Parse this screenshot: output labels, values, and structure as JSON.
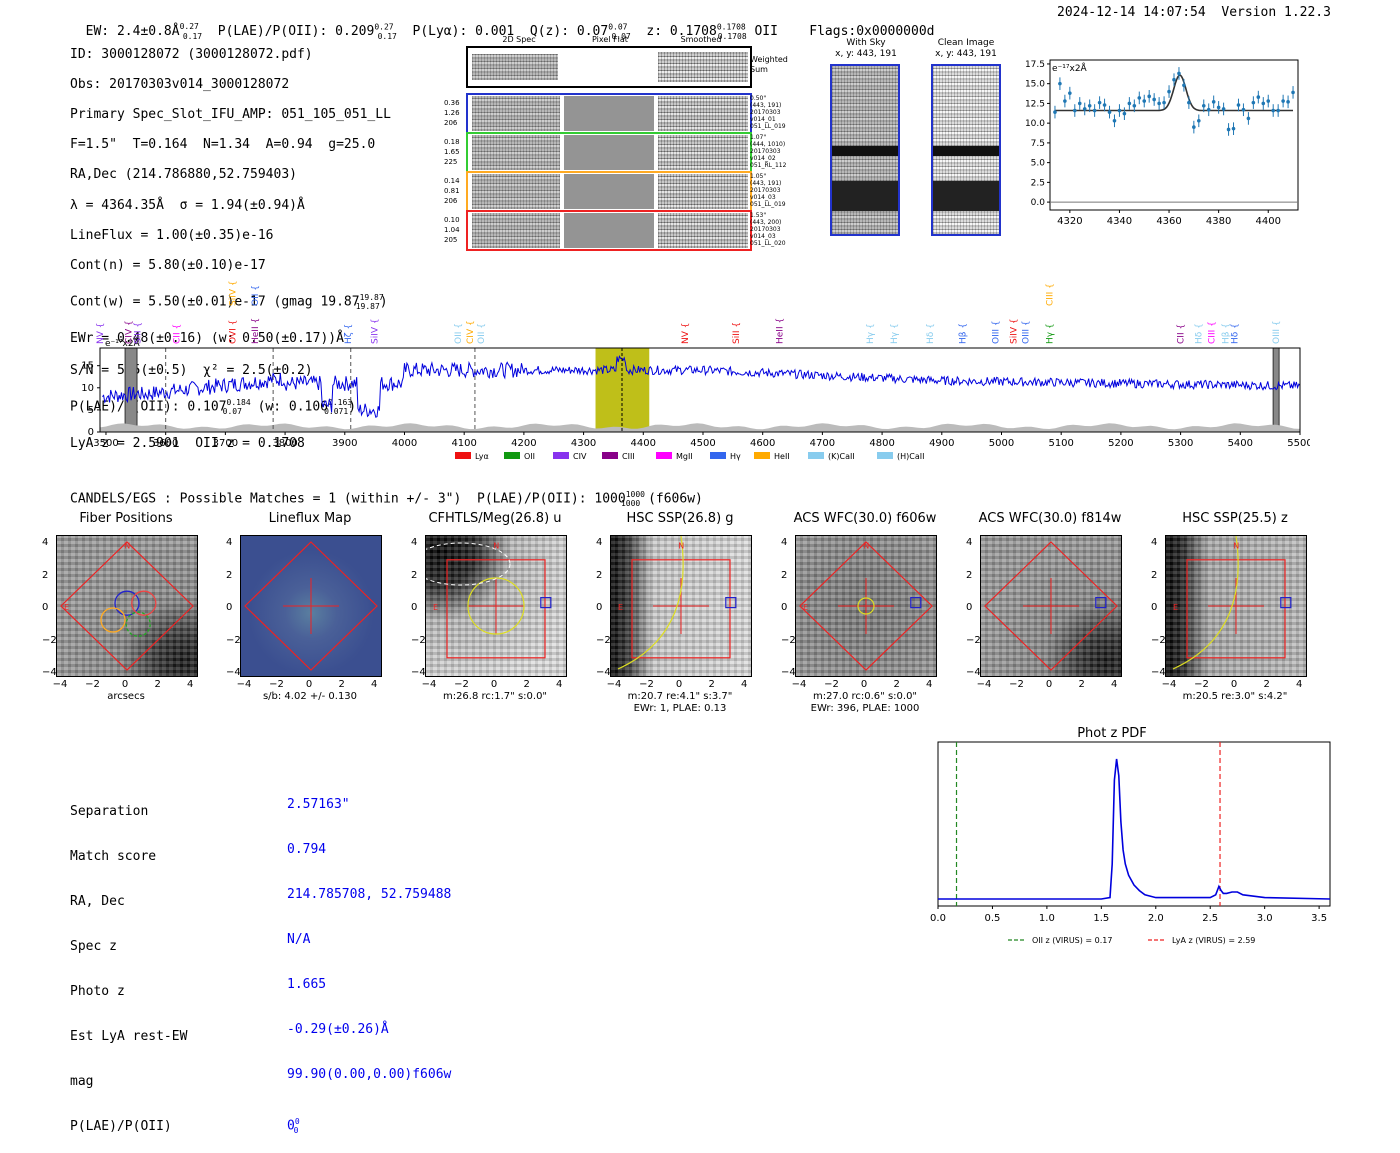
{
  "header": {
    "ew": "EW: 2.4±0.8Å",
    "ew_sup": "0.27",
    "ew_sub": "0.17",
    "plae_label": "P(LAE)/P(OII): 0.209",
    "plya": "P(Lyα): 0.001",
    "qz_label": "Q(z): 0.07",
    "qz_sup": "0.07",
    "qz_sub": "0.07",
    "z_label": "z: 0.1708",
    "z_sup": "0.1708",
    "z_sub": "0.1708",
    "z_tag": "OII",
    "flags": "Flags:0x0000000d",
    "timestamp": "2024-12-14 14:07:54",
    "version": "Version 1.22.3"
  },
  "info": {
    "lines": [
      "ID: 3000128072 (3000128072.pdf)",
      "Obs: 20170303v014_3000128072",
      "Primary Spec_Slot_IFU_AMP: 051_105_051_LL",
      "F=1.5\"  T=0.164  N=1.34  A=0.94  g=25.0",
      "RA,Dec (214.786880,52.759403)",
      "λ = 4364.35Å  σ = 1.94(±0.94)Å",
      "LineFlux = 1.00(±0.35)e-16",
      "Cont(n) = 5.80(±0.10)e-17",
      "Cont(w) = 5.50(±0.01)e-17 (gmag 19.87",
      "EWr = 0.48(±0.16) (w: 0.50(±0.17))Å",
      "S/N = 5.5(±0.5)  χ² = 2.5(±0.2)",
      "P(LAE)/P(OII): 0.107",
      "LyA z = 2.5901  OII z = 0.1708"
    ],
    "gmag_sup": "19.87",
    "gmag_sub": "19.87",
    "plae_sup": "0.184",
    "plae_sub": "0.07",
    "plae_w": "(w: 0.106",
    "plae_w_sup": "0.163",
    "plae_w_sub": "0.071"
  },
  "cutouts": {
    "col_headers": [
      "2D Spec",
      "Pixel Flat",
      "Smoothed"
    ],
    "weighted_sum": "Weighted Sum",
    "rows": [
      {
        "nums": "0.36\n1.26\n206",
        "meta": "0.50\"\n(443, 191)\n20170303\nv014_01\n051_LL_019",
        "color": "#2233cc"
      },
      {
        "nums": "0.18\n1.65\n225",
        "meta": "1.07\"\n(444, 1010)\n20170303\nv014_02\n051_RL_112",
        "color": "#33cc33"
      },
      {
        "nums": "0.14\n0.81\n206",
        "meta": "1.05\"\n(443, 191)\n20170303\nv014_03\n051_LL_019",
        "color": "#ffaa22"
      },
      {
        "nums": "0.10\n1.04\n205",
        "meta": "1.53\"\n(443, 200)\n20170303\nv014_03\n051_LL_020",
        "color": "#ee2222"
      }
    ],
    "with_sky": "With Sky",
    "with_sky_xy": "x, y: 443, 191",
    "clean_image": "Clean Image",
    "clean_xy": "x, y: 443, 191"
  },
  "colors": {
    "blue": "#0000ee",
    "red": "#ee2222",
    "green": "#228822",
    "orange": "#ffaa22",
    "yellow": "#b8b800",
    "steel": "#1f77b4"
  },
  "chart_data": [
    {
      "type": "scatter",
      "name": "line-fit",
      "ylabel": "e⁻¹⁷x2Å",
      "xlim": [
        4312,
        4412
      ],
      "ylim": [
        -1,
        18
      ],
      "xticks": [
        4320,
        4340,
        4360,
        4380,
        4400
      ],
      "yticks": [
        0.0,
        2.5,
        5.0,
        7.5,
        10.0,
        12.5,
        15.0,
        17.5
      ],
      "x": [
        4314,
        4316,
        4318,
        4320,
        4322,
        4324,
        4326,
        4328,
        4330,
        4332,
        4334,
        4336,
        4338,
        4340,
        4342,
        4344,
        4346,
        4348,
        4350,
        4352,
        4354,
        4356,
        4358,
        4360,
        4362,
        4364,
        4366,
        4368,
        4370,
        4372,
        4374,
        4376,
        4378,
        4380,
        4382,
        4384,
        4386,
        4388,
        4390,
        4392,
        4394,
        4396,
        4398,
        4400,
        4402,
        4404,
        4406,
        4408,
        4410
      ],
      "y": [
        11.4,
        15.0,
        12.8,
        13.8,
        11.6,
        12.5,
        11.8,
        12.2,
        11.6,
        12.6,
        12.3,
        11.4,
        10.3,
        11.6,
        11.2,
        12.5,
        12.2,
        13.2,
        12.8,
        13.4,
        13.0,
        12.5,
        12.6,
        14.0,
        15.5,
        16.3,
        14.8,
        12.6,
        9.5,
        10.3,
        12.2,
        11.7,
        12.7,
        12.0,
        11.8,
        9.2,
        9.3,
        12.3,
        11.7,
        10.6,
        12.6,
        13.3,
        12.5,
        12.8,
        11.6,
        11.6,
        12.8,
        12.7,
        13.9
      ],
      "fit_baseline": 11.6,
      "fit_peak": 16.1,
      "fit_center": 4364.35,
      "fit_sigma": 1.94
    },
    {
      "type": "line",
      "name": "full-spectrum",
      "ylabel": "e⁻¹⁷x2Å",
      "xlim": [
        3490,
        5500
      ],
      "ylim": [
        0,
        19
      ],
      "xticks": [
        3500,
        3600,
        3700,
        3800,
        3900,
        4000,
        4100,
        4200,
        4300,
        4400,
        4500,
        4600,
        4700,
        4800,
        4900,
        5000,
        5100,
        5200,
        5300,
        5400,
        5500
      ],
      "yticks": [
        0,
        5,
        10,
        15
      ],
      "highlight": [
        4320,
        4410
      ],
      "marker": 4364.35,
      "dashed": [
        3600,
        3780,
        3910,
        4118
      ],
      "gray_bands": [
        [
          3532,
          3552
        ],
        [
          5455,
          5465
        ]
      ],
      "legend": [
        "Lyα",
        "OII",
        "CIV",
        "CIII",
        "MgII",
        "Hγ",
        "HeII",
        "(K)CaII",
        "(H)CaII"
      ],
      "legend_colors": [
        "#ee1111",
        "#119911",
        "#8833ee",
        "#880088",
        "#ff00ff",
        "#3366ee",
        "#ffaa00",
        "#88ccee",
        "#88ccee"
      ],
      "line_labels": [
        {
          "x": 3490,
          "label": "NV",
          "color": "#8833ee",
          "row": 1
        },
        {
          "x": 3538,
          "label": "CIV",
          "color": "#880088",
          "row": 1
        },
        {
          "x": 3553,
          "label": "SiII",
          "color": "#8833ee",
          "row": 1
        },
        {
          "x": 3618,
          "label": "CII",
          "color": "#ff00ff",
          "row": 1
        },
        {
          "x": 3712,
          "label": "SiIV",
          "color": "#ffaa00",
          "row": 0
        },
        {
          "x": 3712,
          "label": "OVI",
          "color": "#ee1111",
          "row": 1
        },
        {
          "x": 3750,
          "label": "OII",
          "color": "#3366ee",
          "row": 0
        },
        {
          "x": 3750,
          "label": "HeII",
          "color": "#880088",
          "row": 1
        },
        {
          "x": 3905,
          "label": "Hζ",
          "color": "#3366ee",
          "row": 1
        },
        {
          "x": 3950,
          "label": "SiIV",
          "color": "#8833ee",
          "row": 1
        },
        {
          "x": 4090,
          "label": "OII",
          "color": "#88ccee",
          "row": 1
        },
        {
          "x": 4110,
          "label": "CIV",
          "color": "#ffaa00",
          "row": 1
        },
        {
          "x": 4128,
          "label": "OII",
          "color": "#88ccee",
          "row": 1
        },
        {
          "x": 4470,
          "label": "NV",
          "color": "#ee1111",
          "row": 1
        },
        {
          "x": 4555,
          "label": "SiII",
          "color": "#ee1111",
          "row": 1
        },
        {
          "x": 4628,
          "label": "HeII",
          "color": "#880088",
          "row": 1
        },
        {
          "x": 4780,
          "label": "Hγ",
          "color": "#88ccee",
          "row": 1
        },
        {
          "x": 4820,
          "label": "Hγ",
          "color": "#88ccee",
          "row": 1
        },
        {
          "x": 4880,
          "label": "Hδ",
          "color": "#88ccee",
          "row": 1
        },
        {
          "x": 4935,
          "label": "Hβ",
          "color": "#3366ee",
          "row": 1
        },
        {
          "x": 4990,
          "label": "OIII",
          "color": "#3366ee",
          "row": 1
        },
        {
          "x": 5020,
          "label": "SiIV",
          "color": "#ee1111",
          "row": 1
        },
        {
          "x": 5040,
          "label": "OIII",
          "color": "#3366ee",
          "row": 1
        },
        {
          "x": 5080,
          "label": "CIII",
          "color": "#ffaa00",
          "row": 0
        },
        {
          "x": 5080,
          "label": "Hγ",
          "color": "#119911",
          "row": 1
        },
        {
          "x": 5300,
          "label": "CII",
          "color": "#880088",
          "row": 1
        },
        {
          "x": 5330,
          "label": "Hδ",
          "color": "#88ccee",
          "row": 1
        },
        {
          "x": 5352,
          "label": "CIII",
          "color": "#ff00ff",
          "row": 1
        },
        {
          "x": 5375,
          "label": "Hβ",
          "color": "#88ccee",
          "row": 1
        },
        {
          "x": 5390,
          "label": "Hδ",
          "color": "#3366ee",
          "row": 1
        },
        {
          "x": 5460,
          "label": "OIII",
          "color": "#88ccee",
          "row": 1
        }
      ]
    },
    {
      "type": "line",
      "name": "phot-z-pdf",
      "title": "Phot z PDF",
      "xlim": [
        0.0,
        3.6
      ],
      "xticks": [
        0.0,
        0.5,
        1.0,
        1.5,
        2.0,
        2.5,
        3.0,
        3.5
      ],
      "x": [
        0.0,
        1.5,
        1.58,
        1.6,
        1.62,
        1.64,
        1.66,
        1.68,
        1.7,
        1.72,
        1.75,
        1.8,
        1.85,
        1.9,
        2.0,
        2.5,
        2.55,
        2.58,
        2.6,
        2.62,
        2.65,
        2.7,
        2.75,
        2.8,
        2.9,
        3.0,
        3.6
      ],
      "y": [
        0.0,
        0.0,
        0.01,
        0.25,
        0.85,
        1.0,
        0.88,
        0.55,
        0.35,
        0.25,
        0.17,
        0.1,
        0.06,
        0.03,
        0.01,
        0.01,
        0.03,
        0.09,
        0.06,
        0.04,
        0.04,
        0.05,
        0.05,
        0.03,
        0.02,
        0.01,
        0.0
      ],
      "vlines": [
        {
          "x": 0.17,
          "color": "#228822"
        },
        {
          "x": 2.59,
          "color": "#ee2222"
        }
      ],
      "legend": [
        "OII z (VIRUS) = 0.17",
        "LyA z (VIRUS) = 2.59"
      ]
    }
  ],
  "candels": {
    "summary": "CANDELS/EGS : Possible Matches = 1 (within +/- 3\")  P(LAE)/P(OII): 1000",
    "summary_sup": "1000",
    "summary_sub": "1000",
    "summary_tail": "(f606w)"
  },
  "panels": [
    {
      "title": "Fiber Positions",
      "caption1": "arcsecs",
      "caption2": ""
    },
    {
      "title": "Lineflux Map",
      "caption1": "s/b: 4.02 +/- 0.130",
      "caption2": ""
    },
    {
      "title": "CFHTLS/Meg(26.8) u",
      "caption1": "m:26.8 rc:1.7\"  s:0.0\"",
      "caption2": ""
    },
    {
      "title": "HSC SSP(26.8) g",
      "caption1": "m:20.7  re:4.1\"  s:3.7\"",
      "caption2": "EWr: 1, PLAE: 0.13"
    },
    {
      "title": "ACS WFC(30.0) f606w",
      "caption1": "m:27.0 rc:0.6\"  s:0.0\"",
      "caption2": "EWr: 396, PLAE: 1000"
    },
    {
      "title": "ACS WFC(30.0) f814w",
      "caption1": "",
      "caption2": ""
    },
    {
      "title": "HSC SSP(25.5) z",
      "caption1": "m:20.5  re:3.0\"  s:4.2\"",
      "caption2": ""
    }
  ],
  "panel_ticks": {
    "x": [
      "−4",
      "−2",
      "0",
      "2",
      "4"
    ],
    "y": [
      "4",
      "2",
      "0",
      "−2",
      "−4"
    ]
  },
  "compass": {
    "north": "N",
    "east": "E"
  },
  "match": {
    "labels": [
      "Separation",
      "Match score",
      "RA, Dec",
      "Spec z",
      "Photo z",
      "Est LyA rest-EW",
      "mag",
      "P(LAE)/P(OII)"
    ],
    "values": [
      "2.57163\"",
      "0.794",
      "214.785708, 52.759488",
      "N/A",
      "1.665",
      "-0.29(±0.26)Å",
      "99.90(0.00,0.00)f606w",
      "0"
    ],
    "plae_sup": "0",
    "plae_sub": "0"
  }
}
